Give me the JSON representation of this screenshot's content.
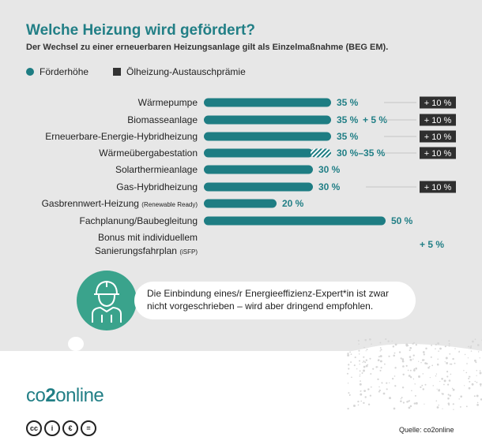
{
  "title": "Welche Heizung wird gefördert?",
  "subtitle": "Der Wechsel zu einer erneuerbaren Heizungsanlage gilt als Einzelmaßnahme (BEG EM).",
  "legend": {
    "item1": "Förderhöhe",
    "item2": "Ölheizung-Austauschprämie"
  },
  "colors": {
    "accent": "#227f86",
    "bar": "#1e7d83",
    "premium": "#2f2f2f",
    "avatar": "#3aa38c",
    "background": "#e7e7e7"
  },
  "chart_data": {
    "type": "bar",
    "orientation": "horizontal",
    "title": "Welche Heizung wird gefördert?",
    "unit": "%",
    "categories": [
      {
        "label": "Wärmepumpe",
        "value": 35,
        "value_label": "35 %",
        "bonus": null,
        "premium": "+ 10 %"
      },
      {
        "label": "Biomasseanlage",
        "value": 35,
        "value_label": "35 %",
        "bonus": "+ 5 %",
        "premium": "+ 10 %"
      },
      {
        "label": "Erneuerbare-Energie-Hybridheizung",
        "value": 35,
        "value_label": "35 %",
        "bonus": null,
        "premium": "+ 10 %"
      },
      {
        "label": "Wärmeübergabestation",
        "value": 30,
        "value_max": 35,
        "value_label": "30 %–35 %",
        "bonus": null,
        "premium": "+ 10 %"
      },
      {
        "label": "Solarthermieanlage",
        "value": 30,
        "value_label": "30 %",
        "bonus": null,
        "premium": null
      },
      {
        "label": "Gas-Hybridheizung",
        "value": 30,
        "value_label": "30 %",
        "bonus": null,
        "premium": "+ 10 %"
      },
      {
        "label": "Gasbrennwert-Heizung",
        "label_small": "(Renewable Ready)",
        "value": 20,
        "value_label": "20 %",
        "bonus": null,
        "premium": null
      },
      {
        "label": "Fachplanung/Baubegleitung",
        "value": 50,
        "value_label": "50 %",
        "bonus": null,
        "premium": null
      },
      {
        "label": "Bonus mit individuellem",
        "label2": "Sanierungsfahrplan",
        "label_small": "(iSFP)",
        "value": null,
        "value_label": null,
        "bonus": null,
        "extra_bonus": "+ 5 %",
        "premium": null
      }
    ]
  },
  "callout": {
    "text": "Die Einbindung eines/r Energieeffizienz-Expert*in ist zwar nicht vorgeschrieben – wird aber dringend empfohlen.",
    "icon": "worker-helmet-icon"
  },
  "logo": {
    "prefix": "co",
    "digit": "2",
    "suffix": "online"
  },
  "license_icons": [
    "cc",
    "by",
    "nc",
    "nd"
  ],
  "license_labels": [
    "cc",
    "i",
    "€",
    "="
  ],
  "source": "Quelle: co2online"
}
